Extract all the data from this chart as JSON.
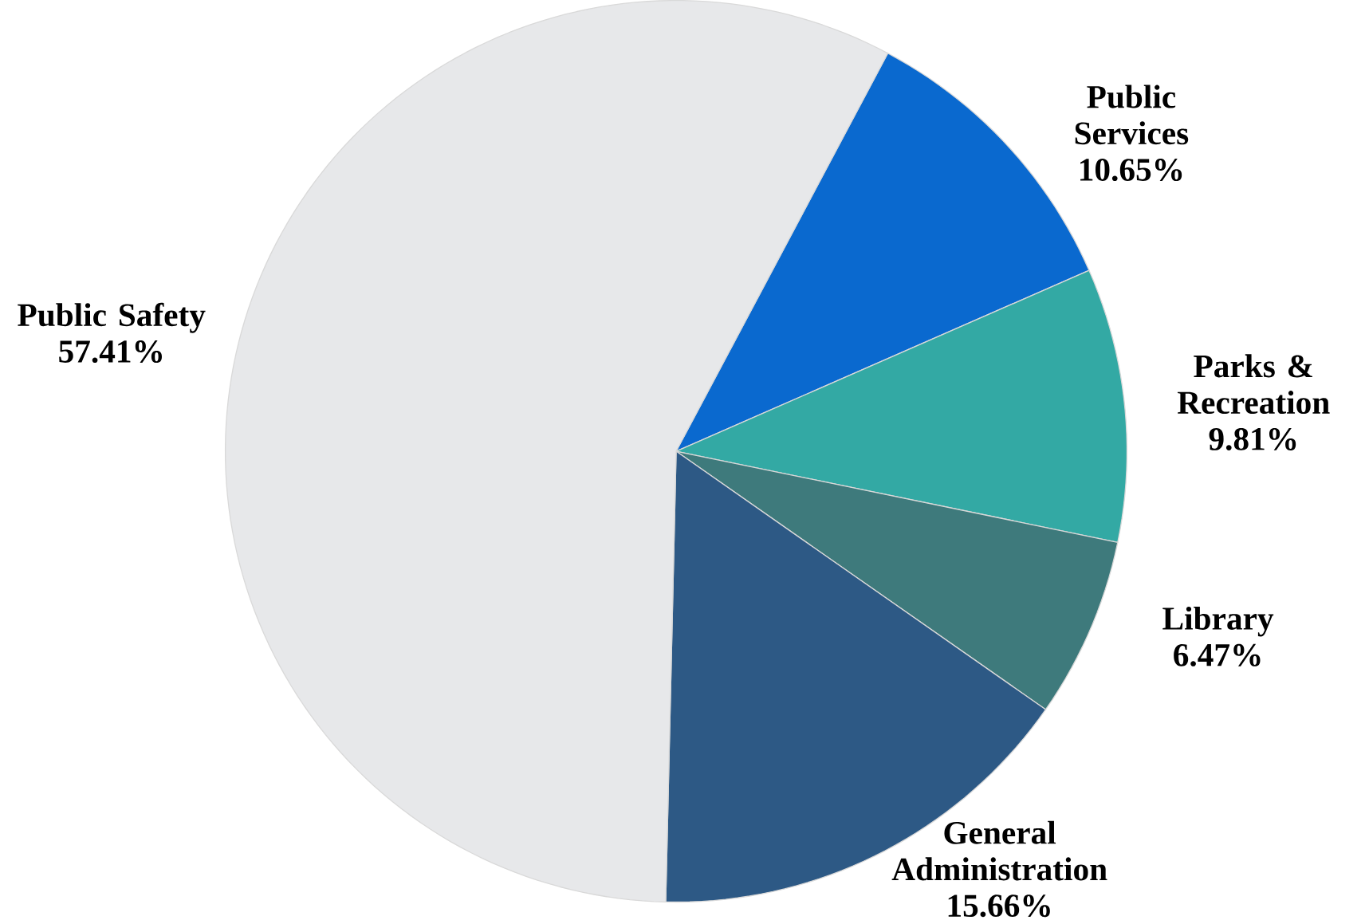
{
  "chart_data": {
    "type": "pie",
    "categories": [
      "Public Services",
      "Parks & Recreation",
      "Library",
      "General Administration",
      "Public Safety"
    ],
    "values": [
      10.65,
      9.81,
      6.47,
      15.66,
      57.41
    ],
    "value_labels": [
      "10.65%",
      "9.81%",
      "6.47%",
      "15.66%",
      "57.41%"
    ],
    "colors": [
      "#0a69cf",
      "#33a9a4",
      "#3e7a7c",
      "#2d5985",
      "#e7e8ea"
    ]
  }
}
